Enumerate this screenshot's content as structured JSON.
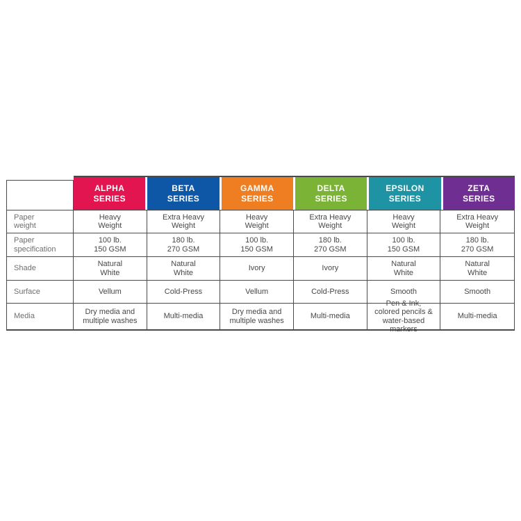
{
  "page": {
    "background": "#ffffff"
  },
  "chart_data": {
    "type": "table",
    "title": "",
    "columns": [
      "",
      "ALPHA SERIES",
      "BETA SERIES",
      "GAMMA SERIES",
      "DELTA SERIES",
      "EPSILON SERIES",
      "ZETA SERIES"
    ],
    "rows": [
      [
        "Paper weight",
        "Heavy Weight",
        "Extra Heavy Weight",
        "Heavy Weight",
        "Extra Heavy Weight",
        "Heavy Weight",
        "Extra Heavy Weight"
      ],
      [
        "Paper specification",
        "100 lb. 150 GSM",
        "180 lb. 270 GSM",
        "100 lb. 150 GSM",
        "180 lb. 270 GSM",
        "100 lb. 150 GSM",
        "180 lb. 270 GSM"
      ],
      [
        "Shade",
        "Natural White",
        "Natural White",
        "Ivory",
        "Ivory",
        "Natural White",
        "Natural White"
      ],
      [
        "Surface",
        "Vellum",
        "Cold-Press",
        "Vellum",
        "Cold-Press",
        "Smooth",
        "Smooth"
      ],
      [
        "Media",
        "Dry media and multiple washes",
        "Multi-media",
        "Dry media and multiple washes",
        "Multi-media",
        "Pen & Ink, colored pencils & water-based markers",
        "Multi-media"
      ]
    ],
    "header_colors": [
      "#e31550",
      "#0d57a6",
      "#ef7d22",
      "#7ab335",
      "#1d93a3",
      "#6f2e91"
    ],
    "border_color": "#4a4a4a"
  },
  "table": {
    "columns": [
      {
        "label": "ALPHA\nSERIES",
        "color": "#e31550"
      },
      {
        "label": "BETA\nSERIES",
        "color": "#0d57a6"
      },
      {
        "label": "GAMMA\nSERIES",
        "color": "#ef7d22"
      },
      {
        "label": "DELTA\nSERIES",
        "color": "#7ab335"
      },
      {
        "label": "EPSILON\nSERIES",
        "color": "#1d93a3"
      },
      {
        "label": "ZETA\nSERIES",
        "color": "#6f2e91"
      }
    ],
    "rows": [
      {
        "label": "Paper\nweight",
        "values": [
          "Heavy\nWeight",
          "Extra Heavy\nWeight",
          "Heavy\nWeight",
          "Extra Heavy\nWeight",
          "Heavy\nWeight",
          "Extra Heavy\nWeight"
        ]
      },
      {
        "label": "Paper\nspecification",
        "values": [
          "100 lb.\n150 GSM",
          "180 lb.\n270 GSM",
          "100 lb.\n150 GSM",
          "180 lb.\n270 GSM",
          "100 lb.\n150 GSM",
          "180 lb.\n270 GSM"
        ]
      },
      {
        "label": "Shade",
        "values": [
          "Natural\nWhite",
          "Natural\nWhite",
          "Ivory",
          "Ivory",
          "Natural\nWhite",
          "Natural\nWhite"
        ]
      },
      {
        "label": "Surface",
        "values": [
          "Vellum",
          "Cold-Press",
          "Vellum",
          "Cold-Press",
          "Smooth",
          "Smooth"
        ]
      },
      {
        "label": "Media",
        "values": [
          "Dry media and\nmultiple washes",
          "Multi-media",
          "Dry media and\nmultiple washes",
          "Multi-media",
          "Pen & Ink,\ncolored pencils &\nwater-based markers",
          "Multi-media"
        ]
      }
    ]
  }
}
